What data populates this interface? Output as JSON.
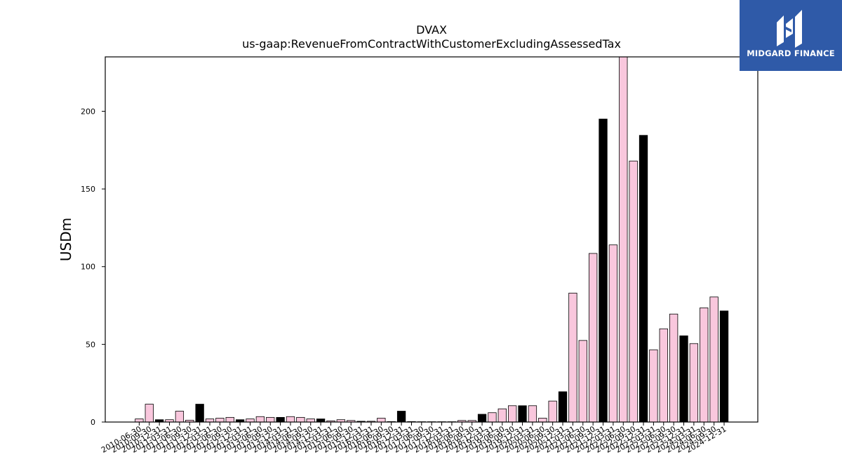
{
  "chart_data": {
    "type": "bar",
    "title": "DVAX",
    "subtitle": "us-gaap:RevenueFromContractWithCustomerExcludingAssessedTax",
    "xlabel": "",
    "ylabel": "USDm",
    "ylim": [
      0,
      235
    ],
    "yticks": [
      0,
      50,
      100,
      150,
      200
    ],
    "grid": false,
    "colors": {
      "quarter": "#f9c7dd",
      "year_end": "#000000",
      "edge": "#000000"
    },
    "categories": [
      "2010-06-30",
      "2010-09-30",
      "2010-12-31",
      "2011-03-31",
      "2011-06-30",
      "2011-09-30",
      "2011-12-31",
      "2012-03-31",
      "2012-06-30",
      "2012-09-30",
      "2012-12-31",
      "2013-03-31",
      "2013-06-30",
      "2013-09-30",
      "2013-12-31",
      "2014-03-31",
      "2014-06-30",
      "2014-09-30",
      "2014-12-31",
      "2015-03-31",
      "2015-06-30",
      "2015-09-30",
      "2015-12-31",
      "2016-03-31",
      "2016-06-30",
      "2016-09-30",
      "2016-12-31",
      "2017-03-31",
      "2017-06-30",
      "2017-09-30",
      "2017-12-31",
      "2018-03-31",
      "2018-06-30",
      "2018-09-30",
      "2018-12-31",
      "2019-03-31",
      "2019-06-30",
      "2019-09-30",
      "2019-12-31",
      "2020-03-31",
      "2020-06-30",
      "2020-09-30",
      "2020-12-31",
      "2021-03-31",
      "2021-06-30",
      "2021-09-30",
      "2021-12-31",
      "2022-03-31",
      "2022-06-30",
      "2022-09-30",
      "2022-12-31",
      "2023-03-31",
      "2023-06-30",
      "2023-09-30",
      "2023-12-31",
      "2024-03-31",
      "2024-06-30",
      "2024-09-30",
      "2024-12-31"
    ],
    "values": [
      2.0,
      11.5,
      1.5,
      1.5,
      7.0,
      1.2,
      11.5,
      2.0,
      2.5,
      3.0,
      1.5,
      2.0,
      3.5,
      3.0,
      3.0,
      3.5,
      3.0,
      2.0,
      2.0,
      0.8,
      1.5,
      1.0,
      0.5,
      0.5,
      2.5,
      0.3,
      7.0,
      0.3,
      0.2,
      0.2,
      0.2,
      0.2,
      1.0,
      1.0,
      5.0,
      6.0,
      8.5,
      10.5,
      10.5,
      10.5,
      2.5,
      13.5,
      19.5,
      83.0,
      52.5,
      108.5,
      195.0,
      114.0,
      235.0,
      168.0,
      184.5,
      46.5,
      60.0,
      69.5,
      55.5,
      50.5,
      73.5,
      80.5,
      71.5
    ],
    "year_end": [
      false,
      false,
      true,
      false,
      false,
      false,
      true,
      false,
      false,
      false,
      true,
      false,
      false,
      false,
      true,
      false,
      false,
      false,
      true,
      false,
      false,
      false,
      true,
      false,
      false,
      false,
      true,
      false,
      false,
      false,
      true,
      false,
      false,
      false,
      true,
      false,
      false,
      false,
      true,
      false,
      false,
      false,
      true,
      false,
      false,
      false,
      true,
      false,
      false,
      false,
      true,
      false,
      false,
      false,
      true,
      false,
      false,
      false,
      true
    ]
  },
  "logo": {
    "text": "MIDGARD FINANCE",
    "background": "#2f5aa8"
  }
}
